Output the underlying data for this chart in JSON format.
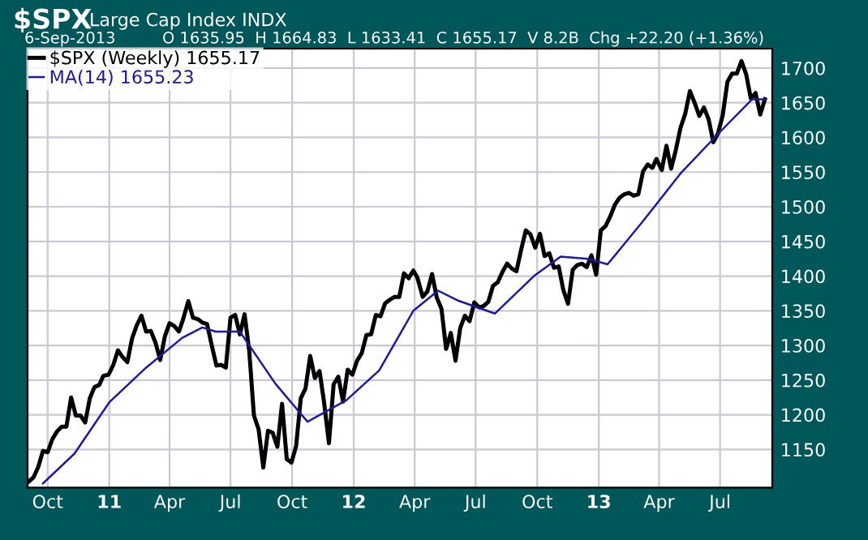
{
  "chart_data": {
    "type": "line",
    "title": "$SPX",
    "subtitle": "Large Cap Index INDX",
    "annotations": [
      "6-Sep-2013",
      "O 1635.95  H 1664.83  L 1633.41  C 1655.17  V 8.2B  Chg +22.20 (+1.36%)"
    ],
    "xlim": [
      "2010-09-01",
      "2013-09-17"
    ],
    "xticks": [
      {
        "value": "2010-10-01",
        "label": "Oct"
      },
      {
        "value": "2011-01-01",
        "label": "11"
      },
      {
        "value": "2011-04-01",
        "label": "Apr"
      },
      {
        "value": "2011-07-01",
        "label": "Jul"
      },
      {
        "value": "2011-10-01",
        "label": "Oct"
      },
      {
        "value": "2012-01-01",
        "label": "12"
      },
      {
        "value": "2012-04-01",
        "label": "Apr"
      },
      {
        "value": "2012-07-01",
        "label": "Jul"
      },
      {
        "value": "2012-10-01",
        "label": "Oct"
      },
      {
        "value": "2013-01-01",
        "label": "13"
      },
      {
        "value": "2013-04-01",
        "label": "Apr"
      },
      {
        "value": "2013-07-01",
        "label": "Jul"
      }
    ],
    "ylim": [
      1095,
      1728
    ],
    "yticks": [
      1150,
      1200,
      1250,
      1300,
      1350,
      1400,
      1450,
      1500,
      1550,
      1600,
      1650,
      1700
    ],
    "grid": true,
    "legend": "top left",
    "marker": "none",
    "line_style": "solid",
    "series": [
      {
        "name": "$SPX (Weekly) 1655.17",
        "color": "#000000",
        "x": [
          "2010-09-03",
          "2010-09-10",
          "2010-09-17",
          "2010-09-24",
          "2010-10-01",
          "2010-10-08",
          "2010-10-15",
          "2010-10-22",
          "2010-10-29",
          "2010-11-05",
          "2010-11-12",
          "2010-11-19",
          "2010-11-26",
          "2010-12-03",
          "2010-12-10",
          "2010-12-17",
          "2010-12-23",
          "2010-12-31",
          "2011-01-07",
          "2011-01-14",
          "2011-01-21",
          "2011-01-28",
          "2011-02-04",
          "2011-02-11",
          "2011-02-18",
          "2011-02-25",
          "2011-03-04",
          "2011-03-11",
          "2011-03-18",
          "2011-03-25",
          "2011-04-01",
          "2011-04-08",
          "2011-04-15",
          "2011-04-21",
          "2011-04-29",
          "2011-05-06",
          "2011-05-13",
          "2011-05-20",
          "2011-05-27",
          "2011-06-03",
          "2011-06-10",
          "2011-06-17",
          "2011-06-24",
          "2011-07-01",
          "2011-07-08",
          "2011-07-15",
          "2011-07-22",
          "2011-07-29",
          "2011-08-05",
          "2011-08-12",
          "2011-08-19",
          "2011-08-26",
          "2011-09-02",
          "2011-09-09",
          "2011-09-16",
          "2011-09-23",
          "2011-09-30",
          "2011-10-07",
          "2011-10-14",
          "2011-10-21",
          "2011-10-28",
          "2011-11-04",
          "2011-11-11",
          "2011-11-18",
          "2011-11-25",
          "2011-12-02",
          "2011-12-09",
          "2011-12-16",
          "2011-12-23",
          "2011-12-30",
          "2012-01-06",
          "2012-01-13",
          "2012-01-20",
          "2012-01-27",
          "2012-02-03",
          "2012-02-10",
          "2012-02-17",
          "2012-02-24",
          "2012-03-02",
          "2012-03-09",
          "2012-03-16",
          "2012-03-23",
          "2012-03-30",
          "2012-04-05",
          "2012-04-13",
          "2012-04-20",
          "2012-04-27",
          "2012-05-04",
          "2012-05-11",
          "2012-05-18",
          "2012-05-25",
          "2012-06-01",
          "2012-06-08",
          "2012-06-15",
          "2012-06-22",
          "2012-06-29",
          "2012-07-06",
          "2012-07-13",
          "2012-07-20",
          "2012-07-27",
          "2012-08-03",
          "2012-08-10",
          "2012-08-17",
          "2012-08-24",
          "2012-08-31",
          "2012-09-07",
          "2012-09-14",
          "2012-09-21",
          "2012-09-28",
          "2012-10-05",
          "2012-10-12",
          "2012-10-19",
          "2012-10-26",
          "2012-11-02",
          "2012-11-09",
          "2012-11-16",
          "2012-11-23",
          "2012-11-30",
          "2012-12-07",
          "2012-12-14",
          "2012-12-21",
          "2012-12-28",
          "2013-01-04",
          "2013-01-11",
          "2013-01-18",
          "2013-01-25",
          "2013-02-01",
          "2013-02-08",
          "2013-02-15",
          "2013-02-22",
          "2013-03-01",
          "2013-03-08",
          "2013-03-15",
          "2013-03-22",
          "2013-03-28",
          "2013-04-05",
          "2013-04-12",
          "2013-04-19",
          "2013-04-26",
          "2013-05-03",
          "2013-05-10",
          "2013-05-17",
          "2013-05-24",
          "2013-05-31",
          "2013-06-07",
          "2013-06-14",
          "2013-06-21",
          "2013-06-28",
          "2013-07-05",
          "2013-07-12",
          "2013-07-19",
          "2013-07-26",
          "2013-08-02",
          "2013-08-09",
          "2013-08-16",
          "2013-08-23",
          "2013-08-30",
          "2013-09-06"
        ],
        "values": [
          1104,
          1110,
          1125,
          1148,
          1146,
          1165,
          1176,
          1183,
          1183,
          1225,
          1199,
          1199,
          1189,
          1224,
          1240,
          1243,
          1256,
          1258,
          1272,
          1293,
          1283,
          1276,
          1310,
          1329,
          1343,
          1320,
          1321,
          1304,
          1279,
          1313,
          1332,
          1328,
          1320,
          1337,
          1364,
          1340,
          1338,
          1333,
          1331,
          1300,
          1271,
          1272,
          1268,
          1340,
          1344,
          1316,
          1345,
          1292,
          1199,
          1179,
          1124,
          1177,
          1174,
          1154,
          1216,
          1136,
          1131,
          1155,
          1224,
          1238,
          1285,
          1253,
          1263,
          1216,
          1159,
          1244,
          1255,
          1219,
          1265,
          1258,
          1278,
          1289,
          1315,
          1316,
          1344,
          1342,
          1361,
          1366,
          1370,
          1370,
          1404,
          1397,
          1408,
          1398,
          1370,
          1378,
          1403,
          1369,
          1353,
          1295,
          1318,
          1278,
          1325,
          1343,
          1335,
          1362,
          1355,
          1357,
          1363,
          1386,
          1391,
          1406,
          1418,
          1411,
          1407,
          1438,
          1466,
          1460,
          1441,
          1461,
          1429,
          1433,
          1412,
          1414,
          1380,
          1360,
          1409,
          1416,
          1418,
          1413,
          1430,
          1402,
          1466,
          1472,
          1486,
          1503,
          1513,
          1518,
          1520,
          1516,
          1518,
          1551,
          1561,
          1556,
          1569,
          1553,
          1588,
          1555,
          1582,
          1614,
          1634,
          1667,
          1650,
          1631,
          1643,
          1626,
          1593,
          1606,
          1632,
          1680,
          1692,
          1692,
          1710,
          1691,
          1656,
          1664,
          1633,
          1655
        ]
      },
      {
        "name": "MA(14) 1655.23",
        "color": "#1a1aa6",
        "x": [
          "2010-09-24",
          "2010-11-10",
          "2011-01-01",
          "2011-02-25",
          "2011-04-20",
          "2011-05-20",
          "2011-06-09",
          "2011-07-15",
          "2011-09-06",
          "2011-10-24",
          "2011-12-21",
          "2012-02-08",
          "2012-03-30",
          "2012-05-06",
          "2012-06-04",
          "2012-07-30",
          "2012-09-26",
          "2012-11-05",
          "2012-12-16",
          "2013-01-14",
          "2013-03-07",
          "2013-05-03",
          "2013-06-30",
          "2013-08-18",
          "2013-09-06"
        ],
        "values": [
          1101,
          1144,
          1218,
          1268,
          1311,
          1326,
          1320,
          1320,
          1245,
          1190,
          1221,
          1264,
          1350,
          1379,
          1365,
          1346,
          1400,
          1428,
          1425,
          1417,
          1478,
          1548,
          1607,
          1655,
          1655
        ]
      }
    ]
  }
}
